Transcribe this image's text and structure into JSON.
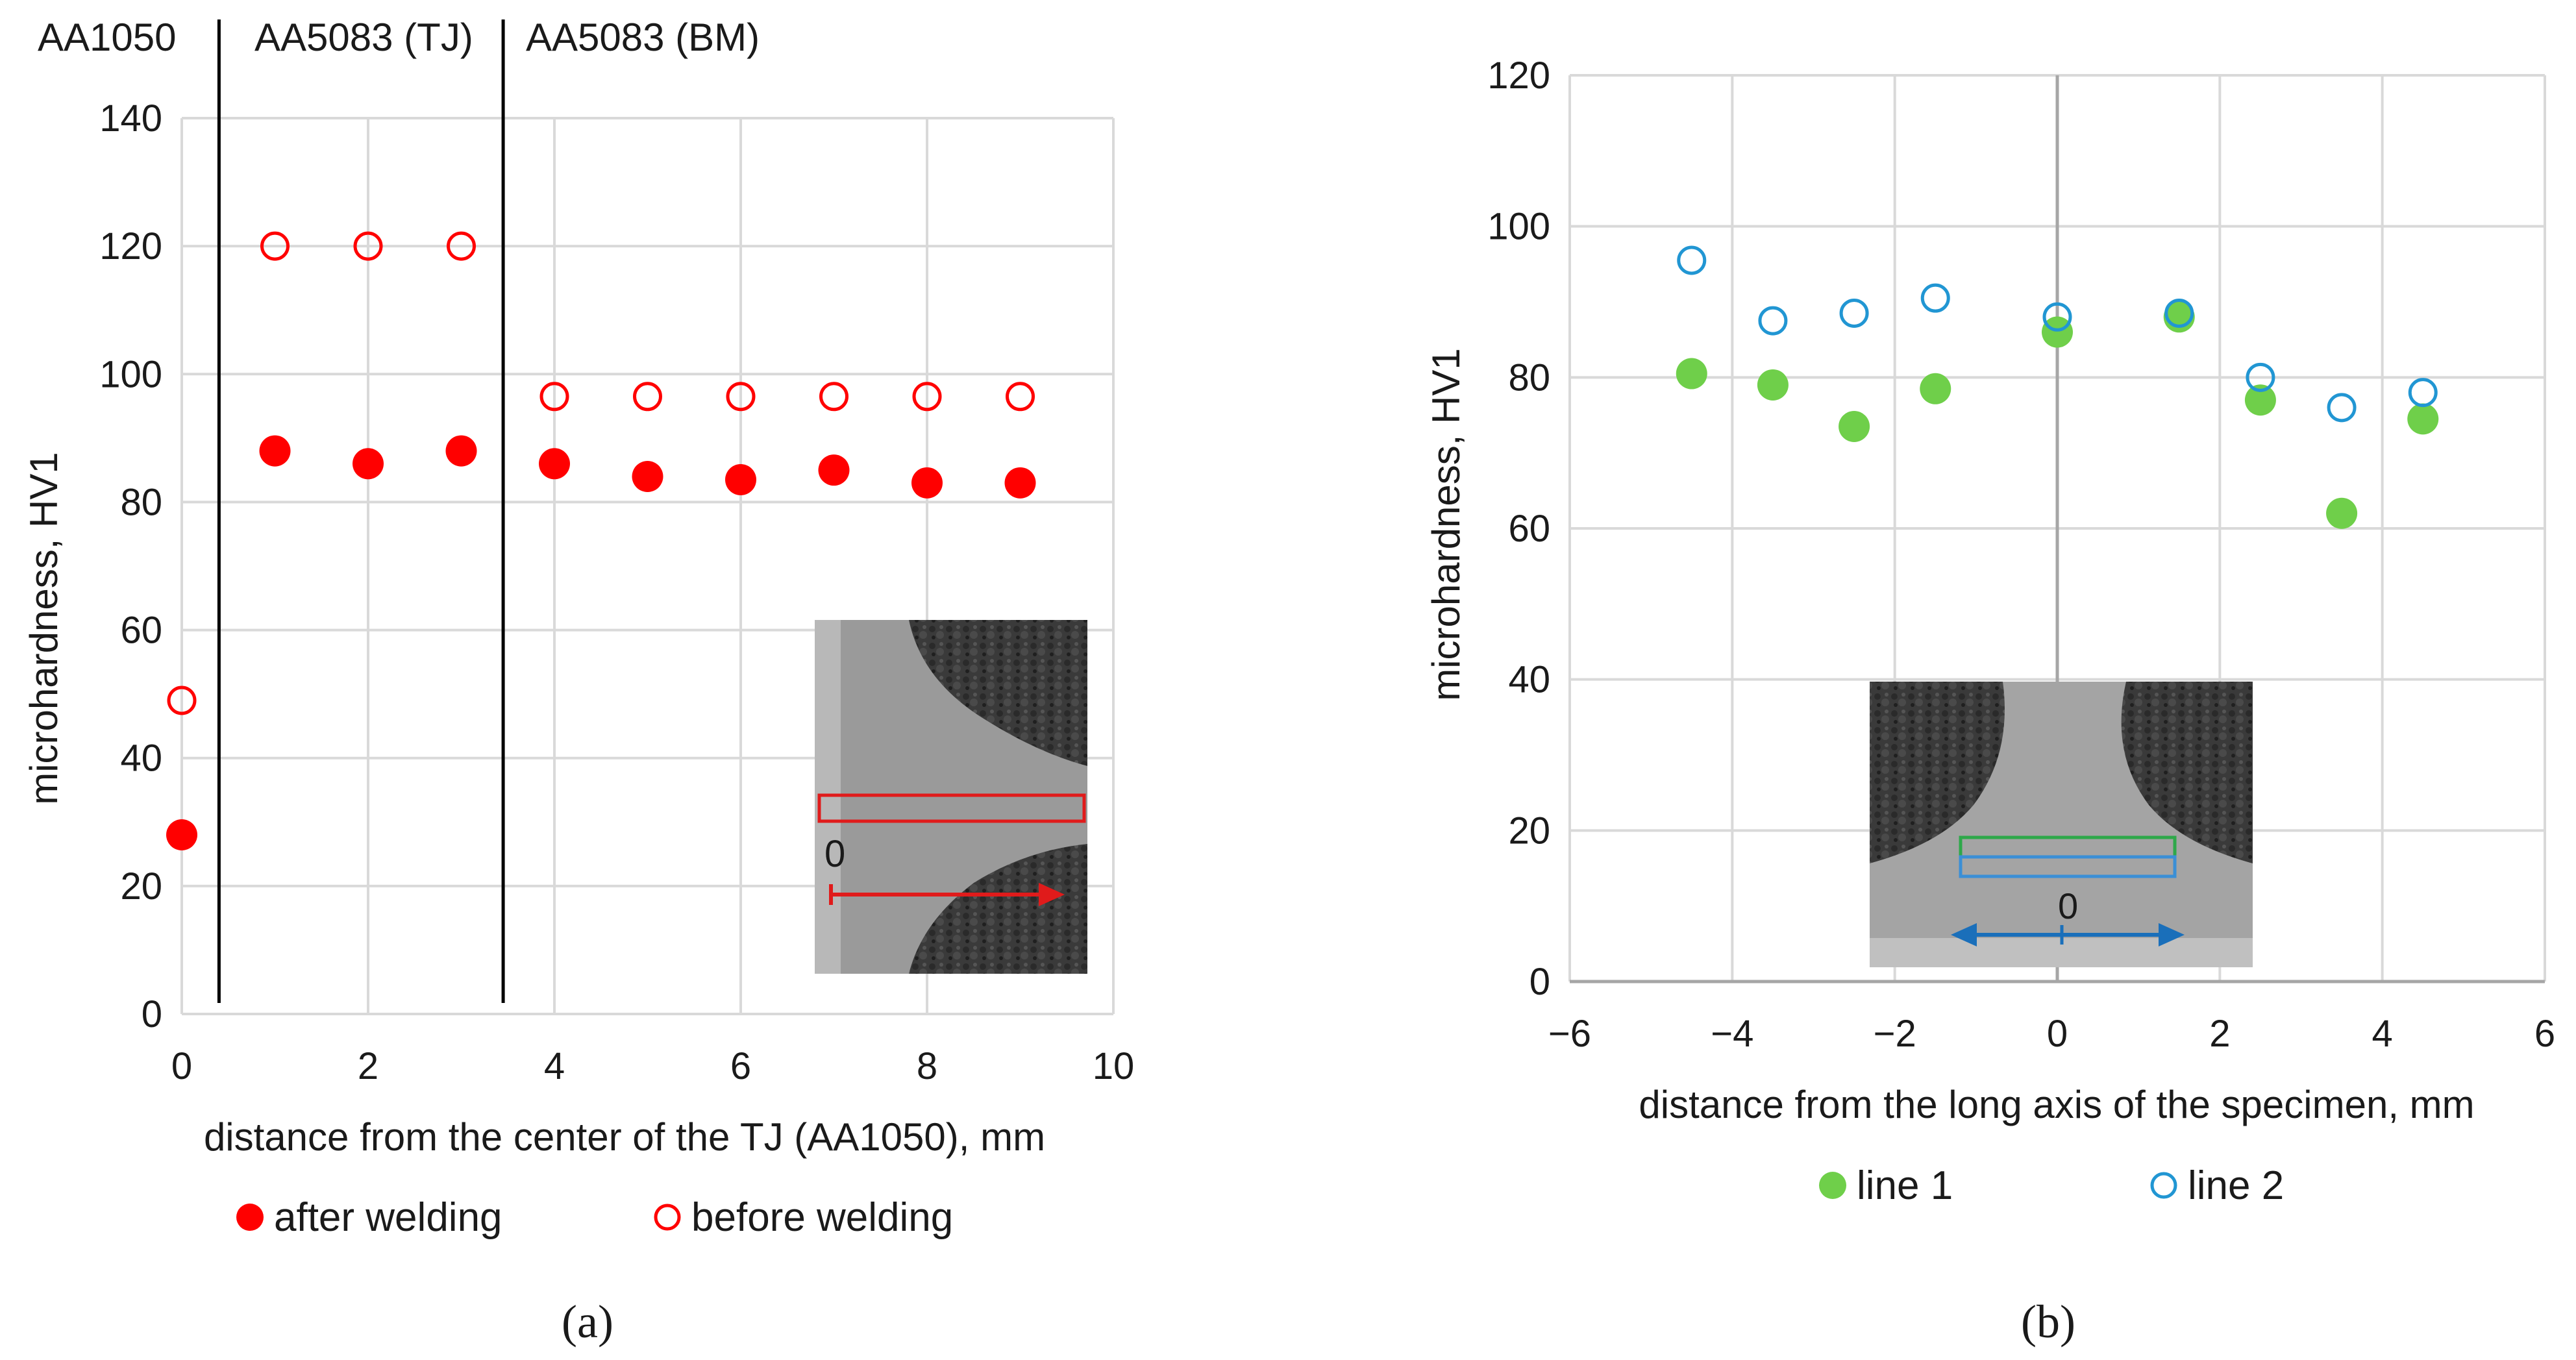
{
  "chart_data": [
    {
      "panel_caption": "(a)",
      "type": "scatter",
      "xlabel": "distance from the center of the TJ (AA1050), mm",
      "ylabel": "microhardness, HV1",
      "xlim": [
        0,
        10
      ],
      "ylim": [
        0,
        140
      ],
      "xticks": [
        0,
        2,
        4,
        6,
        8,
        10
      ],
      "yticks": [
        0,
        20,
        40,
        60,
        80,
        100,
        120,
        140
      ],
      "grid": true,
      "legend_position": "bottom",
      "region_labels": [
        "AA1050",
        "AA5083 (TJ)",
        "AA5083 (BM)"
      ],
      "region_boundaries_x": [
        0.4,
        3.45
      ],
      "inset": {
        "zero_label": "0",
        "marker_color": "#e01b1b"
      },
      "series": [
        {
          "name": "after welding",
          "marker": "filled-circle",
          "color": "#ff0000",
          "x": [
            0,
            1,
            2,
            3,
            4,
            5,
            6,
            7,
            8,
            9
          ],
          "y": [
            28,
            88,
            86,
            88,
            86,
            84,
            83.5,
            85,
            83,
            83
          ]
        },
        {
          "name": "before welding",
          "marker": "open-circle",
          "color": "#ff0000",
          "x": [
            0,
            1,
            2,
            3,
            4,
            5,
            6,
            7,
            8,
            9
          ],
          "y": [
            49,
            120,
            120,
            120,
            96.5,
            96.5,
            96.5,
            96.5,
            96.5,
            96.5
          ]
        }
      ]
    },
    {
      "panel_caption": "(b)",
      "type": "scatter",
      "xlabel": "distance from the long axis of the specimen, mm",
      "ylabel": "microhardness, HV1",
      "xlim": [
        -6,
        6
      ],
      "ylim": [
        0,
        120
      ],
      "xticks": [
        -6,
        -4,
        -2,
        0,
        2,
        4,
        6
      ],
      "xtick_labels": [
        "−6",
        "−4",
        "−2",
        "0",
        "2",
        "4",
        "6"
      ],
      "yticks": [
        0,
        20,
        40,
        60,
        80,
        100,
        120
      ],
      "grid": true,
      "legend_position": "bottom",
      "inset": {
        "zero_label": "0",
        "line1_color": "#2ea84a",
        "line2_color": "#3b8fd6",
        "arrow_color": "#1a6fba"
      },
      "series": [
        {
          "name": "line 1",
          "marker": "filled-circle",
          "color": "#6fcf4a",
          "x": [
            -4.5,
            -3.5,
            -2.5,
            -1.5,
            0,
            1.5,
            2.5,
            3.5,
            4.5
          ],
          "y": [
            80.5,
            79,
            73.5,
            78.5,
            86,
            88,
            77,
            62,
            74.5
          ]
        },
        {
          "name": "line 2",
          "marker": "open-circle",
          "color": "#2196d3",
          "x": [
            -4.5,
            -3.5,
            -2.5,
            -1.5,
            0,
            1.5,
            2.5,
            3.5,
            4.5
          ],
          "y": [
            95.5,
            87.5,
            88.5,
            90.5,
            88,
            88.5,
            80,
            76,
            78
          ]
        }
      ]
    }
  ]
}
